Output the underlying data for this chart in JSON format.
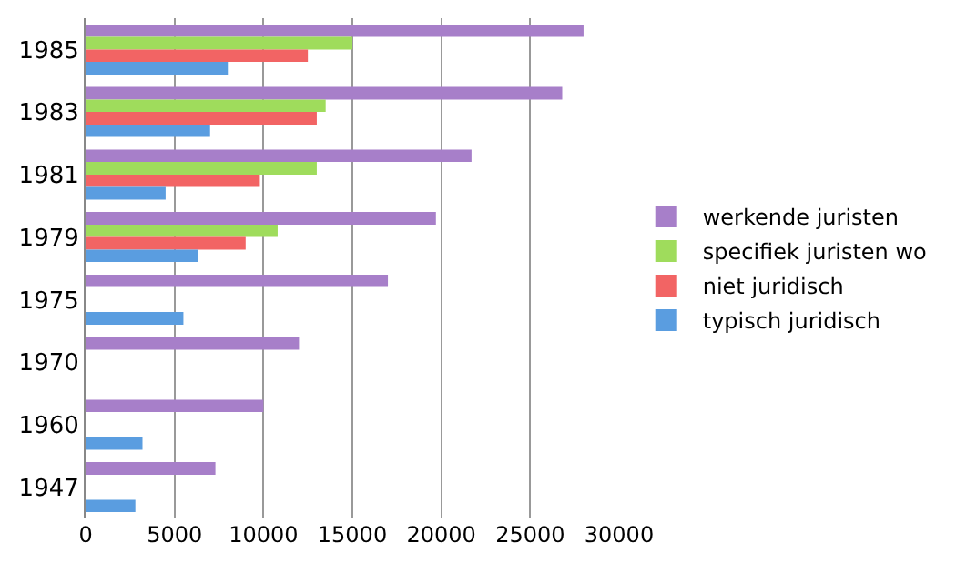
{
  "chart_data": {
    "type": "bar",
    "orientation": "horizontal",
    "categories": [
      "1985",
      "1983",
      "1981",
      "1979",
      "1975",
      "1970",
      "1960",
      "1947"
    ],
    "series": [
      {
        "name": "werkende juristen",
        "color": "#a77fc9",
        "values": [
          28000,
          26800,
          21700,
          19700,
          17000,
          12000,
          10000,
          7300
        ]
      },
      {
        "name": "specifiek juristen wo",
        "color": "#9fdc5c",
        "values": [
          15000,
          13500,
          13000,
          10800,
          null,
          null,
          null,
          null
        ]
      },
      {
        "name": "niet juridisch",
        "color": "#f26464",
        "values": [
          12500,
          13000,
          9800,
          9000,
          null,
          null,
          null,
          null
        ]
      },
      {
        "name": "typisch juridisch",
        "color": "#5a9de0",
        "values": [
          8000,
          7000,
          4500,
          6300,
          5500,
          null,
          3200,
          2800
        ]
      }
    ],
    "xlim": [
      0,
      30000
    ],
    "xticks": [
      0,
      5000,
      10000,
      15000,
      20000,
      25000,
      30000
    ],
    "grid": "x",
    "legend": "right"
  }
}
